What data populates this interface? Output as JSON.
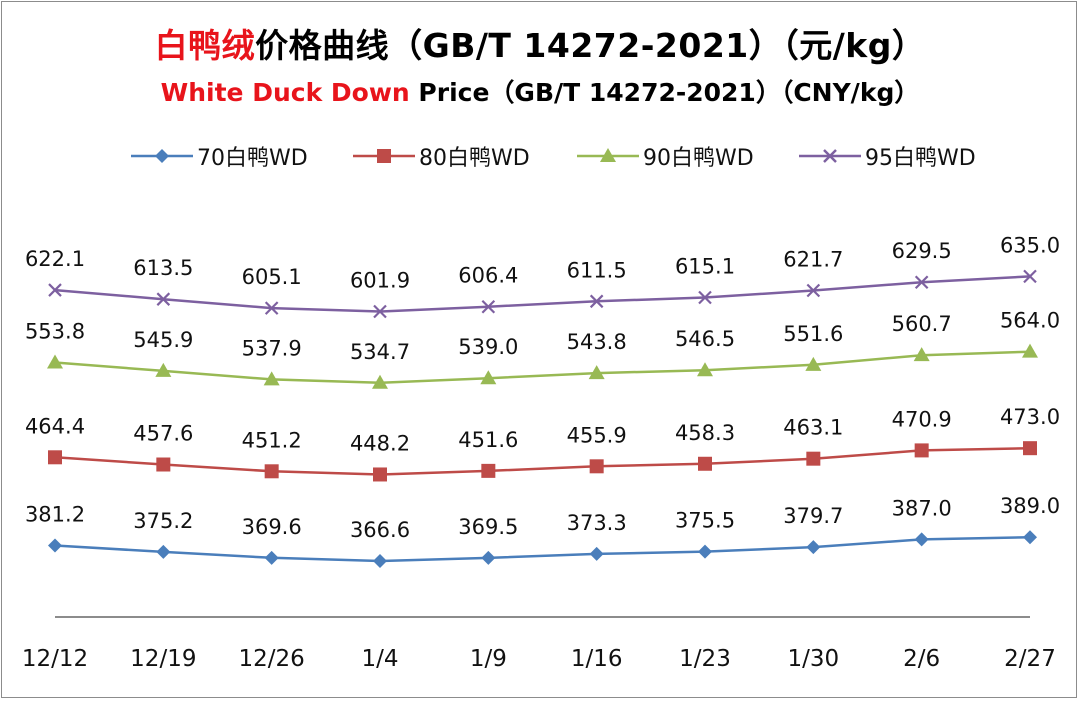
{
  "header": {
    "title_cn_red": "白鸭绒",
    "title_cn_rest": "价格曲线（GB/T 14272-2021）（元/kg）",
    "title_en_red": "White Duck Down",
    "title_en_rest": " Price（GB/T 14272-2021）（CNY/kg）"
  },
  "chart_data": {
    "type": "line",
    "title": "白鸭绒价格曲线（GB/T 14272-2021）（元/kg）",
    "subtitle": "White Duck Down Price（GB/T 14272-2021）（CNY/kg）",
    "categories": [
      "12/12",
      "12/19",
      "12/26",
      "1/4",
      "1/9",
      "1/16",
      "1/23",
      "1/30",
      "2/6",
      "2/27"
    ],
    "ylim": [
      330,
      650
    ],
    "grid": false,
    "legend_position": "top",
    "series": [
      {
        "name": "70白鸭WD",
        "color": "#4a7ebb",
        "marker": "diamond",
        "values": [
          381.2,
          375.2,
          369.6,
          366.6,
          369.5,
          373.3,
          375.5,
          379.7,
          387.0,
          389.0
        ]
      },
      {
        "name": "80白鸭WD",
        "color": "#be4b48",
        "marker": "square",
        "values": [
          464.4,
          457.6,
          451.2,
          448.2,
          451.6,
          455.9,
          458.3,
          463.1,
          470.9,
          473.0
        ]
      },
      {
        "name": "90白鸭WD",
        "color": "#98b954",
        "marker": "triangle",
        "values": [
          553.8,
          545.9,
          537.9,
          534.7,
          539.0,
          543.8,
          546.5,
          551.6,
          560.7,
          564.0
        ]
      },
      {
        "name": "95白鸭WD",
        "color": "#7d60a0",
        "marker": "cross",
        "values": [
          622.1,
          613.5,
          605.1,
          601.9,
          606.4,
          611.5,
          615.1,
          621.7,
          629.5,
          635.0
        ]
      }
    ]
  }
}
